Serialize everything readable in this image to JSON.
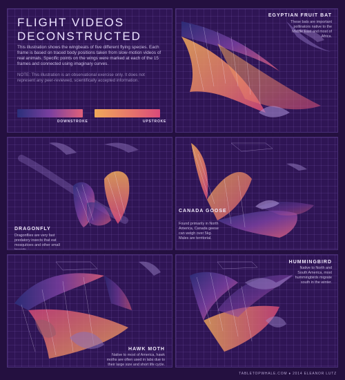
{
  "header": {
    "title_line1": "FLIGHT VIDEOS",
    "title_line2": "DECONSTRUCTED",
    "intro": "This illustration shows the wingbeats of five different flying species. Each frame is based on traced body positions taken from slow-motion videos of real animals. Specific points on the wings were marked at each of the 15 frames and connected using imaginary curves.",
    "note": "NOTE: This illustration is an observational exercise only. It does not represent any peer-reviewed, scientifically accepted information."
  },
  "legend": {
    "downstroke_label": "DOWNSTROKE",
    "upstroke_label": "UPSTROKE",
    "downstroke_colors": [
      "#2a2f7a",
      "#7a3fa0",
      "#e0607a"
    ],
    "upstroke_colors": [
      "#f0a95a",
      "#e87a6a",
      "#d94a7a"
    ]
  },
  "species": [
    {
      "name": "EGYPTIAN FRUIT BAT",
      "description": "These bats are important pollinators native to the Middle East and most of Africa."
    },
    {
      "name": "DRAGONFLY",
      "description": "Dragonflies are very fast predatory insects that eat mosquitoes and other small insects."
    },
    {
      "name": "CANADA GOOSE",
      "description": "Found primarily in North America, Canada geese can weigh over 5kg. Males are territorial."
    },
    {
      "name": "HAWK MOTH",
      "description": "Native to most of America, hawk moths are often used in labs due to their large size and short life cycle."
    },
    {
      "name": "HUMMINGBIRD",
      "description": "Native to North and South America, most hummingbirds migrate south in the winter."
    }
  ],
  "footer": {
    "credit": "TABLETOPWHALE.COM ♦ 2014 ELEANOR LUTZ"
  },
  "colors": {
    "background": "#241040",
    "panel": "#2f1555",
    "grid": "#5a3d8a"
  }
}
